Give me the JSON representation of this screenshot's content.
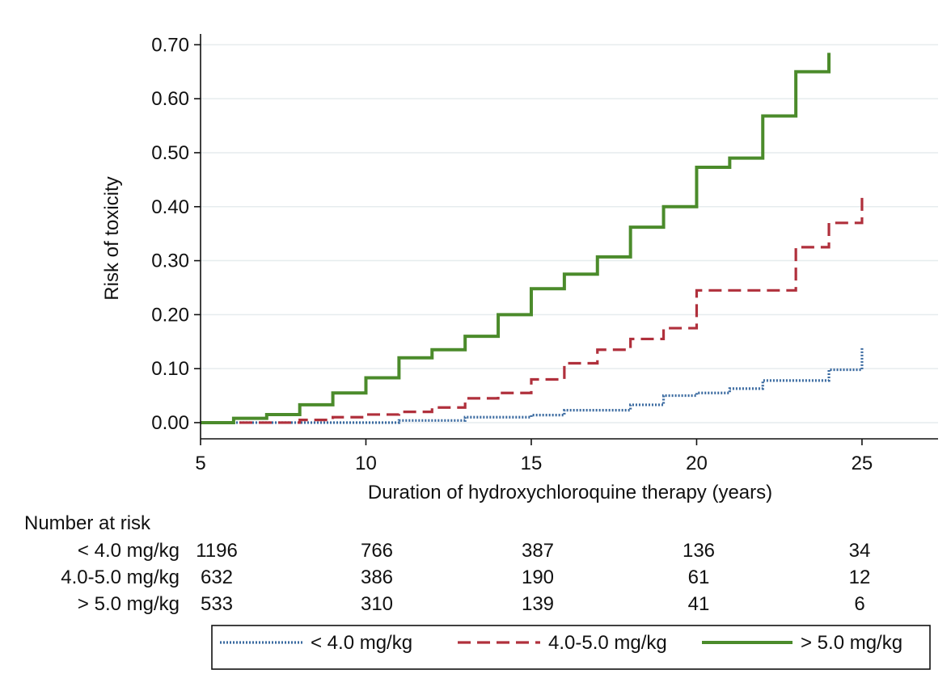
{
  "chart_data": {
    "type": "line",
    "subtype": "kaplan-meier step curves (cumulative risk)",
    "xlabel": "Duration of hydroxychloroquine therapy (years)",
    "ylabel": "Risk of toxicity",
    "xlim": [
      5,
      27.3
    ],
    "ylim": [
      -0.03,
      0.72
    ],
    "xticks": [
      5,
      10,
      15,
      20,
      25
    ],
    "xtick_labels": [
      "5",
      "10",
      "15",
      "20",
      "25"
    ],
    "yticks": [
      0.0,
      0.1,
      0.2,
      0.3,
      0.4,
      0.5,
      0.6,
      0.7
    ],
    "ytick_labels": [
      "0.00",
      "0.10",
      "0.20",
      "0.30",
      "0.40",
      "0.50",
      "0.60",
      "0.70"
    ],
    "grid": "horizontal",
    "legend_position": "bottom",
    "series": [
      {
        "name": "< 4.0 mg/kg",
        "color": "#3a6aa0",
        "style": "dotted",
        "points": [
          [
            5.0,
            0.0
          ],
          [
            10.0,
            0.0
          ],
          [
            11.0,
            0.004
          ],
          [
            13.0,
            0.01
          ],
          [
            15.0,
            0.014
          ],
          [
            16.0,
            0.023
          ],
          [
            18.0,
            0.033
          ],
          [
            19.0,
            0.05
          ],
          [
            20.0,
            0.055
          ],
          [
            21.0,
            0.063
          ],
          [
            22.0,
            0.078
          ],
          [
            24.0,
            0.098
          ],
          [
            25.0,
            0.14
          ]
        ]
      },
      {
        "name": "4.0-5.0 mg/kg",
        "color": "#b0303c",
        "style": "dashed",
        "points": [
          [
            5.0,
            0.0
          ],
          [
            8.0,
            0.005
          ],
          [
            9.0,
            0.01
          ],
          [
            10.0,
            0.015
          ],
          [
            11.0,
            0.02
          ],
          [
            12.0,
            0.028
          ],
          [
            13.0,
            0.045
          ],
          [
            14.0,
            0.055
          ],
          [
            15.0,
            0.08
          ],
          [
            16.0,
            0.11
          ],
          [
            17.0,
            0.135
          ],
          [
            18.0,
            0.155
          ],
          [
            19.0,
            0.175
          ],
          [
            20.0,
            0.245
          ],
          [
            23.0,
            0.325
          ],
          [
            24.0,
            0.37
          ],
          [
            25.0,
            0.42
          ]
        ]
      },
      {
        "name": "> 5.0 mg/kg",
        "color": "#4b8b2b",
        "style": "solid",
        "points": [
          [
            5.0,
            0.0
          ],
          [
            6.0,
            0.008
          ],
          [
            7.0,
            0.015
          ],
          [
            8.0,
            0.033
          ],
          [
            9.0,
            0.055
          ],
          [
            10.0,
            0.083
          ],
          [
            11.0,
            0.12
          ],
          [
            12.0,
            0.135
          ],
          [
            13.0,
            0.16
          ],
          [
            14.0,
            0.2
          ],
          [
            15.0,
            0.248
          ],
          [
            16.0,
            0.275
          ],
          [
            17.0,
            0.307
          ],
          [
            18.0,
            0.362
          ],
          [
            19.0,
            0.4
          ],
          [
            20.0,
            0.473
          ],
          [
            21.0,
            0.49
          ],
          [
            22.0,
            0.568
          ],
          [
            23.0,
            0.65
          ],
          [
            24.0,
            0.685
          ]
        ]
      }
    ],
    "number_at_risk": {
      "title": "Number at risk",
      "times": [
        5,
        10,
        15,
        20,
        25
      ],
      "rows": [
        {
          "label": "< 4.0 mg/kg",
          "values": [
            "1196",
            "766",
            "387",
            "136",
            "34"
          ]
        },
        {
          "label": "4.0-5.0 mg/kg",
          "values": [
            "632",
            "386",
            "190",
            "61",
            "12"
          ]
        },
        {
          "label": "> 5.0 mg/kg",
          "values": [
            "533",
            "310",
            "139",
            "41",
            "6"
          ]
        }
      ]
    }
  }
}
